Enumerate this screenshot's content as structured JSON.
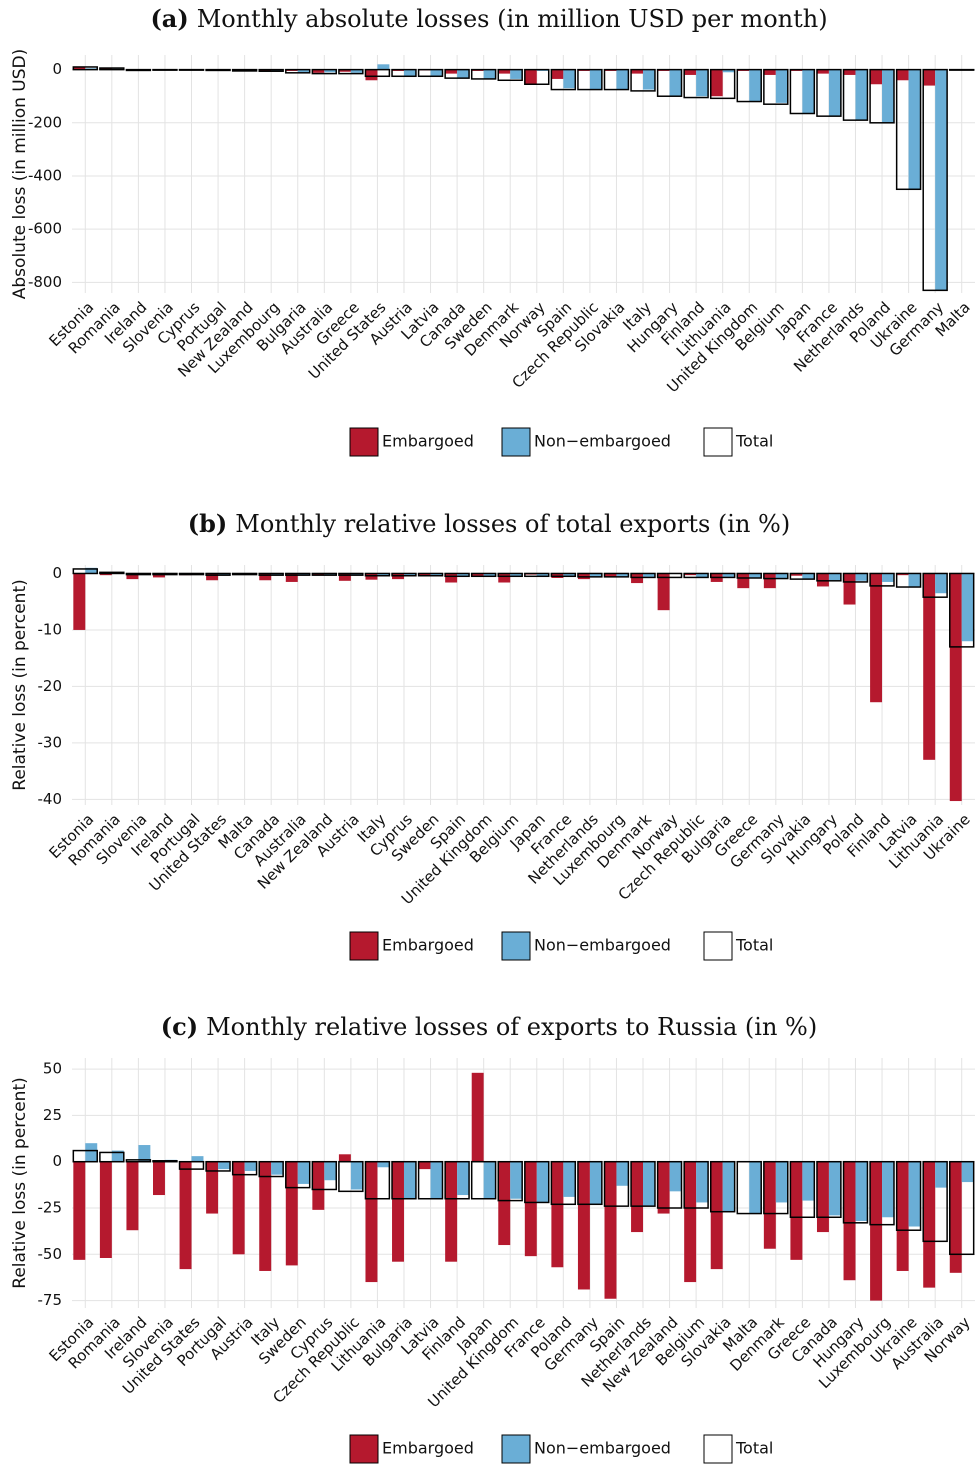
{
  "chart_data": [
    {
      "type": "bar",
      "panel_label": "(a)",
      "title": "Monthly absolute losses (in million USD per month)",
      "y_label": "Absolute loss (in million USD)",
      "categories": [
        "Estonia",
        "Romania",
        "Ireland",
        "Slovenia",
        "Cyprus",
        "Portugal",
        "New Zealand",
        "Luxembourg",
        "Bulgaria",
        "Australia",
        "Greece",
        "United States",
        "Austria",
        "Latvia",
        "Canada",
        "Sweden",
        "Denmark",
        "Norway",
        "Spain",
        "Czech Republic",
        "Slovakia",
        "Italy",
        "Hungary",
        "Finland",
        "Lithuania",
        "United Kingdom",
        "Belgium",
        "Japan",
        "France",
        "Netherlands",
        "Poland",
        "Ukraine",
        "Germany",
        "Malta"
      ],
      "series": [
        {
          "name": "Embargoed",
          "color": "#b5192e",
          "values": [
            8,
            5,
            -3,
            -2,
            -2,
            -3,
            -3,
            -4,
            -5,
            -12,
            -8,
            -40,
            -5,
            -3,
            -15,
            -5,
            -15,
            -55,
            -35,
            -5,
            -5,
            -15,
            -5,
            -20,
            -100,
            -5,
            -20,
            -5,
            -15,
            -20,
            -55,
            -40,
            -60,
            0
          ]
        },
        {
          "name": "Non−embargoed",
          "color": "#6aaed6",
          "values": [
            5,
            3,
            -2,
            -1,
            -2,
            -2,
            -4,
            -5,
            -10,
            -10,
            -12,
            20,
            -25,
            -25,
            -30,
            -35,
            -35,
            -5,
            -70,
            -75,
            -75,
            -75,
            -100,
            -100,
            -10,
            -120,
            -125,
            -165,
            -175,
            -190,
            -200,
            -450,
            -830,
            0
          ]
        },
        {
          "name": "Total",
          "color": "#ffffff",
          "values": [
            10,
            6,
            -3,
            -2,
            -2,
            -3,
            -5,
            -6,
            -12,
            -15,
            -15,
            -25,
            -25,
            -25,
            -32,
            -35,
            -40,
            -55,
            -75,
            -75,
            -75,
            -80,
            -100,
            -105,
            -108,
            -120,
            -130,
            -165,
            -175,
            -190,
            -200,
            -450,
            -830,
            0
          ]
        }
      ],
      "ylim": [
        -840,
        55
      ],
      "yticks": [
        -800,
        -600,
        -400,
        -200,
        0
      ],
      "grid": true
    },
    {
      "type": "bar",
      "panel_label": "(b)",
      "title": "Monthly relative losses of total exports (in %)",
      "y_label": "Relative loss (in percent)",
      "categories": [
        "Estonia",
        "Romania",
        "Slovenia",
        "Ireland",
        "Portugal",
        "United States",
        "Malta",
        "Canada",
        "Australia",
        "New Zealand",
        "Austria",
        "Italy",
        "Cyprus",
        "Sweden",
        "Spain",
        "United Kingdom",
        "Belgium",
        "Japan",
        "France",
        "Netherlands",
        "Luxembourg",
        "Denmark",
        "Norway",
        "Czech Republic",
        "Bulgaria",
        "Greece",
        "Germany",
        "Slovakia",
        "Hungary",
        "Poland",
        "Finland",
        "Latvia",
        "Lithuania",
        "Ukraine"
      ],
      "series": [
        {
          "name": "Embargoed",
          "color": "#b5192e",
          "values": [
            -10,
            -0.3,
            -1,
            -0.7,
            -0.3,
            -1.2,
            -0.2,
            -1.2,
            -1.5,
            -0.3,
            -1.3,
            -1.1,
            -1,
            -0.5,
            -1.6,
            -0.4,
            -1.6,
            -0.2,
            -0.8,
            -1,
            -0.7,
            -1.7,
            -6.5,
            -0.3,
            -1.5,
            -2.6,
            -2.6,
            -0.4,
            -2.3,
            -5.5,
            -22.8,
            -0.3,
            -33,
            -40.3
          ]
        },
        {
          "name": "Non−embargoed",
          "color": "#6aaed6",
          "values": [
            1,
            0.2,
            -0.2,
            -0.2,
            -0.2,
            -0.2,
            -0.2,
            -0.3,
            -0.3,
            -0.3,
            -0.3,
            -0.3,
            -0.4,
            -0.4,
            -0.4,
            -0.5,
            -0.5,
            -0.5,
            -0.5,
            -0.6,
            -0.6,
            -0.6,
            -0.1,
            -0.7,
            -0.6,
            -0.7,
            -0.8,
            -1,
            -1.2,
            -1.3,
            -1.5,
            -2.3,
            -3.5,
            -12
          ]
        },
        {
          "name": "Total",
          "color": "#ffffff",
          "values": [
            0.8,
            0.2,
            -0.2,
            -0.2,
            -0.2,
            -0.3,
            -0.2,
            -0.3,
            -0.3,
            -0.3,
            -0.3,
            -0.4,
            -0.4,
            -0.4,
            -0.5,
            -0.5,
            -0.5,
            -0.5,
            -0.5,
            -0.6,
            -0.6,
            -0.7,
            -0.7,
            -0.7,
            -0.7,
            -0.8,
            -0.9,
            -1,
            -1.3,
            -1.5,
            -2.2,
            -2.4,
            -4.2,
            -13
          ]
        }
      ],
      "ylim": [
        -41,
        1.5
      ],
      "yticks": [
        -40,
        -30,
        -20,
        -10,
        0
      ],
      "grid": true
    },
    {
      "type": "bar",
      "panel_label": "(c)",
      "title": "Monthly relative losses of exports to Russia (in %)",
      "y_label": "Relative loss (in percent)",
      "categories": [
        "Estonia",
        "Romania",
        "Ireland",
        "Slovenia",
        "United States",
        "Portugal",
        "Austria",
        "Italy",
        "Sweden",
        "Cyprus",
        "Czech Republic",
        "Lithuania",
        "Bulgaria",
        "Latvia",
        "Finland",
        "Japan",
        "United Kingdom",
        "France",
        "Poland",
        "Germany",
        "Spain",
        "Netherlands",
        "New Zealand",
        "Belgium",
        "Slovakia",
        "Malta",
        "Denmark",
        "Greece",
        "Canada",
        "Hungary",
        "Luxembourg",
        "Ukraine",
        "Australia",
        "Norway"
      ],
      "series": [
        {
          "name": "Embargoed",
          "color": "#b5192e",
          "values": [
            -53,
            -52,
            -37,
            -18,
            -58,
            -28,
            -50,
            -59,
            -56,
            -26,
            4,
            -65,
            -54,
            -4,
            -54,
            48,
            -45,
            -51,
            -57,
            -69,
            -74,
            -38,
            -28,
            -65,
            -58,
            0,
            -47,
            -53,
            -38,
            -64,
            -75,
            -59,
            -68,
            -60
          ]
        },
        {
          "name": "Non−embargoed",
          "color": "#6aaed6",
          "values": [
            10,
            6,
            9,
            1,
            3,
            -4,
            -5,
            -7,
            -12,
            -10,
            -15,
            -3,
            -20,
            -20,
            -18,
            -20,
            -20,
            -22,
            -19,
            -23,
            -13,
            -24,
            -16,
            -22,
            -27,
            -28,
            -22,
            -21,
            -29,
            -32,
            -30,
            -35,
            -14,
            -11
          ]
        },
        {
          "name": "Total",
          "color": "#ffffff",
          "values": [
            6,
            5,
            1,
            0.5,
            -4,
            -5,
            -7,
            -8,
            -14,
            -15,
            -16,
            -20,
            -20,
            -20,
            -20,
            -20,
            -21,
            -22,
            -23,
            -23,
            -24,
            -24,
            -25,
            -25,
            -27,
            -28,
            -28,
            -30,
            -30,
            -33,
            -34,
            -37,
            -43,
            -50
          ]
        }
      ],
      "ylim": [
        -79,
        56
      ],
      "yticks": [
        -75,
        -50,
        -25,
        0,
        25,
        50
      ],
      "grid": true
    }
  ]
}
